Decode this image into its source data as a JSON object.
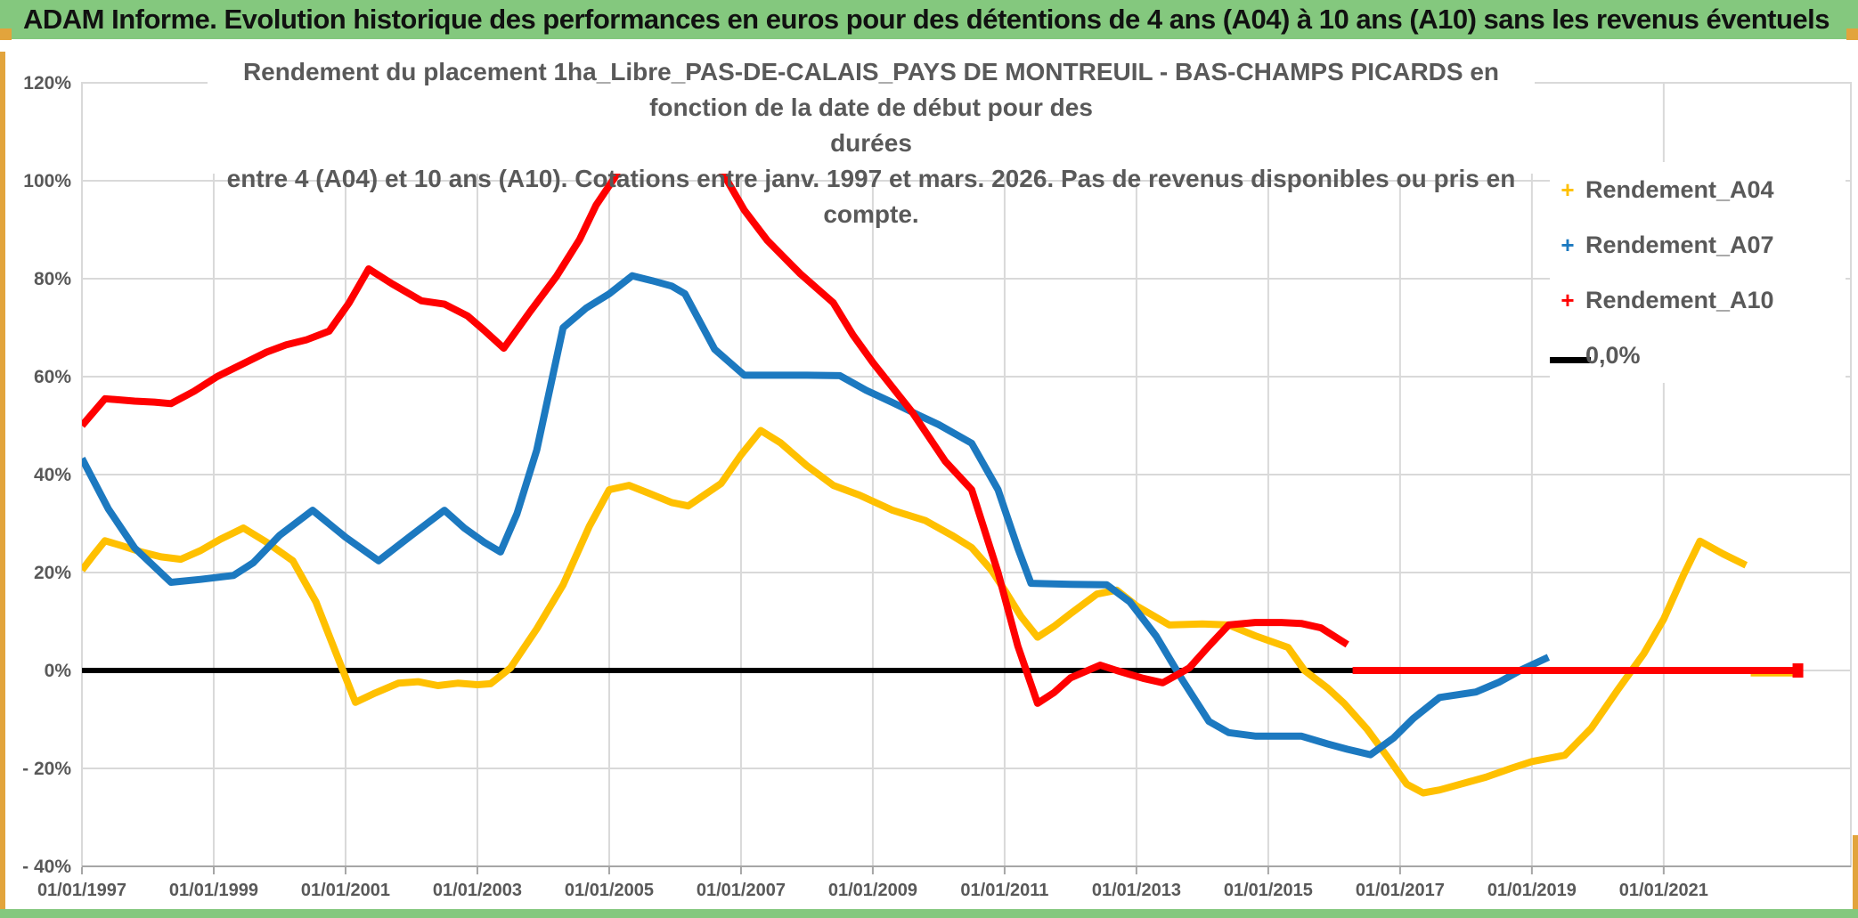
{
  "header": {
    "title": "ADAM Informe. Evolution historique des performances en euros pour des détentions de 4 ans (A04) à 10 ans (A10) sans les revenus éventuels"
  },
  "colors": {
    "header_green": "#84C87E",
    "accent_gold": "#E2A43C",
    "a04": "#FFC000",
    "a07": "#1C79C0",
    "a10": "#FF0000",
    "zero_line": "#000000",
    "grid": "#D9D9D9",
    "axis": "#A6A6A6",
    "label_gray": "#595959"
  },
  "chart_data": {
    "type": "line",
    "title_lines": [
      "Rendement du placement 1ha_Libre_PAS-DE-CALAIS_PAYS DE MONTREUIL - BAS-CHAMPS PICARDS en fonction de la date de début pour des",
      "durées",
      "entre 4 (A04) et 10 ans (A10). Cotations entre janv. 1997 et mars. 2026. Pas de revenus disponibles ou pris en compte."
    ],
    "x_axis": {
      "domain": [
        1997,
        2023.84
      ],
      "tick_years": [
        1997,
        1999,
        2001,
        2003,
        2005,
        2007,
        2009,
        2011,
        2013,
        2015,
        2017,
        2019,
        2021
      ],
      "tick_labels": [
        "01/01/1997",
        "01/01/1999",
        "01/01/2001",
        "01/01/2003",
        "01/01/2005",
        "01/01/2007",
        "01/01/2009",
        "01/01/2011",
        "01/01/2013",
        "01/01/2015",
        "01/01/2017",
        "01/01/2019",
        "01/01/2021"
      ]
    },
    "y_axis": {
      "range": [
        -40,
        120
      ],
      "tick_values": [
        120,
        100,
        80,
        60,
        40,
        20,
        0,
        -20,
        -40
      ],
      "tick_labels": [
        "120%",
        "100%",
        "80%",
        "60%",
        "40%",
        "20%",
        "0%",
        "- 20%",
        "- 40%"
      ]
    },
    "legend": [
      {
        "label": "Rendement_A04",
        "marker": "plus",
        "color": "#FFC000"
      },
      {
        "label": "Rendement_A07",
        "marker": "plus",
        "color": "#1C79C0"
      },
      {
        "label": "Rendement_A10",
        "marker": "plus",
        "color": "#FF0000"
      },
      {
        "label": "0,0%",
        "marker": "line",
        "color": "#000000"
      }
    ],
    "grid": true,
    "legend_position": "right-overlay",
    "series": [
      {
        "name": "0,0%",
        "color": "#000000",
        "width": 6,
        "segments": [
          [
            [
              1997.0,
              0
            ],
            [
              2016.3,
              0
            ]
          ]
        ]
      },
      {
        "name": "Rendement_A04",
        "color": "#FFC000",
        "width": 8,
        "segments": [
          [
            [
              1997.0,
              20.5
            ],
            [
              1997.17,
              23.5
            ],
            [
              1997.35,
              26.5
            ],
            [
              1997.6,
              25.5
            ],
            [
              1997.9,
              24.2
            ],
            [
              1998.2,
              23.2
            ],
            [
              1998.5,
              22.7
            ],
            [
              1998.8,
              24.5
            ],
            [
              1999.1,
              26.8
            ],
            [
              1999.45,
              29.1
            ],
            [
              1999.8,
              26.2
            ],
            [
              2000.2,
              22.4
            ],
            [
              2000.55,
              14
            ],
            [
              2000.9,
              2
            ],
            [
              2001.15,
              -6.5
            ],
            [
              2001.45,
              -4.6
            ],
            [
              2001.8,
              -2.6
            ],
            [
              2002.1,
              -2.3
            ],
            [
              2002.4,
              -3.1
            ],
            [
              2002.7,
              -2.6
            ],
            [
              2003.0,
              -2.9
            ],
            [
              2003.2,
              -2.7
            ],
            [
              2003.5,
              0.5
            ],
            [
              2003.9,
              8.5
            ],
            [
              2004.3,
              17.5
            ],
            [
              2004.7,
              29.5
            ],
            [
              2005.0,
              36.9
            ],
            [
              2005.3,
              37.8
            ],
            [
              2005.6,
              36.2
            ],
            [
              2005.95,
              34.3
            ],
            [
              2006.2,
              33.6
            ],
            [
              2006.7,
              38.2
            ],
            [
              2007.0,
              44
            ],
            [
              2007.3,
              49
            ],
            [
              2007.6,
              46.5
            ],
            [
              2008.0,
              41.8
            ],
            [
              2008.4,
              37.8
            ],
            [
              2008.8,
              35.8
            ],
            [
              2009.3,
              32.7
            ],
            [
              2009.8,
              30.6
            ],
            [
              2010.2,
              27.6
            ],
            [
              2010.5,
              25.1
            ],
            [
              2010.8,
              20.5
            ],
            [
              2011.0,
              16.4
            ],
            [
              2011.25,
              11
            ],
            [
              2011.5,
              6.8
            ],
            [
              2011.75,
              9
            ],
            [
              2012.0,
              11.6
            ],
            [
              2012.4,
              15.6
            ],
            [
              2012.7,
              16.4
            ],
            [
              2013.0,
              13.2
            ],
            [
              2013.5,
              9.3
            ],
            [
              2014.0,
              9.5
            ],
            [
              2014.4,
              9.3
            ],
            [
              2014.8,
              7.1
            ],
            [
              2015.3,
              4.7
            ],
            [
              2015.55,
              0
            ],
            [
              2015.9,
              -3.6
            ],
            [
              2016.15,
              -6.7
            ],
            [
              2016.5,
              -12
            ],
            [
              2016.8,
              -17.5
            ],
            [
              2017.1,
              -23.2
            ],
            [
              2017.35,
              -25
            ],
            [
              2017.6,
              -24.4
            ],
            [
              2018.0,
              -22.9
            ],
            [
              2018.3,
              -21.8
            ],
            [
              2018.7,
              -19.9
            ],
            [
              2019.0,
              -18.6
            ],
            [
              2019.5,
              -17.3
            ],
            [
              2019.9,
              -11.8
            ],
            [
              2020.3,
              -4
            ],
            [
              2020.7,
              3.5
            ],
            [
              2021.0,
              10.5
            ],
            [
              2021.3,
              19.5
            ],
            [
              2021.55,
              26.4
            ],
            [
              2021.9,
              23.8
            ],
            [
              2022.25,
              21.5
            ]
          ],
          [
            [
              2022.32,
              -0.5
            ],
            [
              2023.0,
              -0.5
            ]
          ]
        ]
      },
      {
        "name": "Rendement_A07",
        "color": "#1C79C0",
        "width": 8,
        "segments": [
          [
            [
              1997.0,
              43.3
            ],
            [
              1997.4,
              33
            ],
            [
              1997.8,
              25
            ],
            [
              1998.35,
              18
            ],
            [
              1998.8,
              18.6
            ],
            [
              1999.3,
              19.4
            ],
            [
              1999.6,
              22
            ],
            [
              2000.0,
              27.6
            ],
            [
              2000.5,
              32.7
            ],
            [
              2001.0,
              27.2
            ],
            [
              2001.5,
              22.4
            ],
            [
              2002.0,
              27.6
            ],
            [
              2002.5,
              32.7
            ],
            [
              2002.8,
              29.1
            ],
            [
              2003.1,
              26.2
            ],
            [
              2003.35,
              24.2
            ],
            [
              2003.6,
              32
            ],
            [
              2003.9,
              45
            ],
            [
              2004.3,
              70
            ],
            [
              2004.65,
              74
            ],
            [
              2005.0,
              76.9
            ],
            [
              2005.35,
              80.6
            ],
            [
              2005.65,
              79.6
            ],
            [
              2005.95,
              78.5
            ],
            [
              2006.15,
              76.9
            ],
            [
              2006.6,
              65.6
            ],
            [
              2007.05,
              60.3
            ],
            [
              2008.0,
              60.3
            ],
            [
              2008.5,
              60.2
            ],
            [
              2008.9,
              57.2
            ],
            [
              2009.3,
              54.7
            ],
            [
              2009.7,
              52.1
            ],
            [
              2010.0,
              50.2
            ],
            [
              2010.5,
              46.4
            ],
            [
              2010.9,
              36.9
            ],
            [
              2011.2,
              25
            ],
            [
              2011.4,
              17.8
            ],
            [
              2012.0,
              17.6
            ],
            [
              2012.55,
              17.5
            ],
            [
              2012.9,
              14
            ],
            [
              2013.3,
              7
            ],
            [
              2013.7,
              -2
            ],
            [
              2014.1,
              -10.4
            ],
            [
              2014.4,
              -12.7
            ],
            [
              2014.8,
              -13.4
            ],
            [
              2015.5,
              -13.4
            ],
            [
              2015.9,
              -15
            ],
            [
              2016.2,
              -16.1
            ],
            [
              2016.55,
              -17.2
            ],
            [
              2016.9,
              -13.8
            ],
            [
              2017.2,
              -9.8
            ],
            [
              2017.6,
              -5.5
            ],
            [
              2018.15,
              -4.4
            ],
            [
              2018.5,
              -2.4
            ],
            [
              2018.85,
              0.2
            ],
            [
              2019.25,
              2.7
            ]
          ]
        ]
      },
      {
        "name": "Rendement_A10",
        "color": "#FF0000",
        "width": 8,
        "segments": [
          [
            [
              1997.0,
              50
            ],
            [
              1997.35,
              55.5
            ],
            [
              1997.8,
              55
            ],
            [
              1998.1,
              54.8
            ],
            [
              1998.35,
              54.5
            ],
            [
              1998.7,
              57
            ],
            [
              1999.05,
              60
            ],
            [
              1999.5,
              63
            ],
            [
              1999.8,
              65
            ],
            [
              2000.1,
              66.5
            ],
            [
              2000.4,
              67.5
            ],
            [
              2000.75,
              69.3
            ],
            [
              2001.05,
              75
            ],
            [
              2001.35,
              82
            ],
            [
              2001.7,
              79
            ],
            [
              2002.15,
              75.5
            ],
            [
              2002.5,
              74.8
            ],
            [
              2002.85,
              72.4
            ],
            [
              2003.1,
              69.5
            ],
            [
              2003.4,
              65.8
            ],
            [
              2003.8,
              73.3
            ],
            [
              2004.2,
              80.5
            ],
            [
              2004.55,
              88
            ],
            [
              2004.8,
              95
            ],
            [
              2005.1,
              101
            ],
            [
              2005.5,
              114
            ],
            [
              2005.8,
              120
            ],
            [
              2006.1,
              116
            ],
            [
              2006.5,
              106
            ],
            [
              2006.75,
              101
            ],
            [
              2007.05,
              94
            ],
            [
              2007.4,
              87.8
            ],
            [
              2007.9,
              81
            ],
            [
              2008.4,
              75.1
            ],
            [
              2008.7,
              68.5
            ],
            [
              2009.0,
              62.9
            ],
            [
              2009.6,
              52.7
            ],
            [
              2010.1,
              42.7
            ],
            [
              2010.5,
              36.9
            ],
            [
              2010.9,
              20
            ],
            [
              2011.2,
              5
            ],
            [
              2011.5,
              -6.7
            ],
            [
              2011.75,
              -4.5
            ],
            [
              2012.0,
              -1.5
            ],
            [
              2012.45,
              1.1
            ],
            [
              2012.7,
              0
            ],
            [
              2013.1,
              -1.6
            ],
            [
              2013.4,
              -2.5
            ],
            [
              2013.8,
              0.5
            ],
            [
              2014.1,
              5
            ],
            [
              2014.4,
              9.3
            ],
            [
              2014.8,
              9.8
            ],
            [
              2015.2,
              9.8
            ],
            [
              2015.5,
              9.6
            ],
            [
              2015.8,
              8.7
            ],
            [
              2016.0,
              7
            ],
            [
              2016.2,
              5.3
            ]
          ],
          [
            [
              2016.28,
              0
            ],
            [
              2023.05,
              0
            ]
          ]
        ]
      }
    ]
  }
}
